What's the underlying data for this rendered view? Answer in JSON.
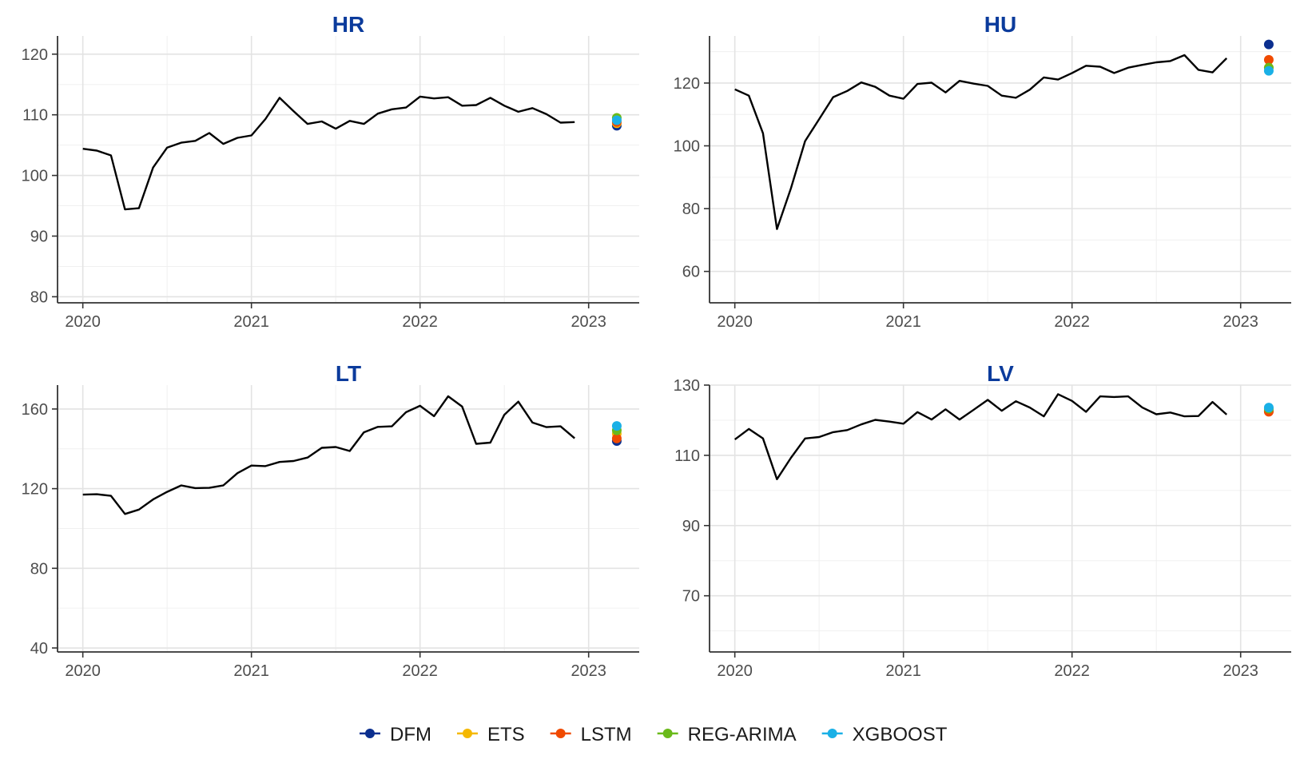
{
  "legend": {
    "items": [
      {
        "label": "DFM",
        "color": "#0b2f8f"
      },
      {
        "label": "ETS",
        "color": "#f5b800"
      },
      {
        "label": "LSTM",
        "color": "#f04a00"
      },
      {
        "label": "REG-ARIMA",
        "color": "#6aba1a"
      },
      {
        "label": "XGBOOST",
        "color": "#1ab0e6"
      }
    ]
  },
  "chart_data": [
    {
      "type": "line",
      "title": "HR",
      "xlabel": "",
      "ylabel": "",
      "x_ticks": [
        2020,
        2021,
        2022,
        2023
      ],
      "xlim": [
        2019.85,
        2023.3
      ],
      "y_ticks": [
        80,
        90,
        100,
        110,
        120
      ],
      "ylim": [
        79,
        123
      ],
      "grid": true,
      "x": [
        2020.0,
        2020.083,
        2020.167,
        2020.25,
        2020.333,
        2020.417,
        2020.5,
        2020.583,
        2020.667,
        2020.75,
        2020.833,
        2020.917,
        2021.0,
        2021.083,
        2021.167,
        2021.25,
        2021.333,
        2021.417,
        2021.5,
        2021.583,
        2021.667,
        2021.75,
        2021.833,
        2021.917,
        2022.0,
        2022.083,
        2022.167,
        2022.25,
        2022.333,
        2022.417,
        2022.5,
        2022.583,
        2022.667,
        2022.75,
        2022.833,
        2022.917
      ],
      "y": [
        104.4,
        104.1,
        103.3,
        94.4,
        94.6,
        101.3,
        104.6,
        105.4,
        105.7,
        107.0,
        105.2,
        106.2,
        106.6,
        109.3,
        112.8,
        110.6,
        108.5,
        108.9,
        107.7,
        109.0,
        108.5,
        110.2,
        110.9,
        111.2,
        113.0,
        112.7,
        112.9,
        111.5,
        111.6,
        112.8,
        111.5,
        110.5,
        111.1,
        110.1,
        108.7,
        108.8
      ],
      "forecast_x": 2023.167,
      "forecasts": [
        {
          "model": "DFM",
          "value": 108.2
        },
        {
          "model": "ETS",
          "value": 108.6
        },
        {
          "model": "LSTM",
          "value": 108.8
        },
        {
          "model": "REG-ARIMA",
          "value": 109.5
        },
        {
          "model": "XGBOOST",
          "value": 109.1
        }
      ]
    },
    {
      "type": "line",
      "title": "HU",
      "xlabel": "",
      "ylabel": "",
      "x_ticks": [
        2020,
        2021,
        2022,
        2023
      ],
      "xlim": [
        2019.85,
        2023.3
      ],
      "y_ticks": [
        60,
        80,
        100,
        120
      ],
      "ylim": [
        50,
        135
      ],
      "grid": true,
      "x": [
        2020.0,
        2020.083,
        2020.167,
        2020.25,
        2020.333,
        2020.417,
        2020.5,
        2020.583,
        2020.667,
        2020.75,
        2020.833,
        2020.917,
        2021.0,
        2021.083,
        2021.167,
        2021.25,
        2021.333,
        2021.417,
        2021.5,
        2021.583,
        2021.667,
        2021.75,
        2021.833,
        2021.917,
        2022.0,
        2022.083,
        2022.167,
        2022.25,
        2022.333,
        2022.417,
        2022.5,
        2022.583,
        2022.667,
        2022.75,
        2022.833,
        2022.917
      ],
      "y": [
        118.0,
        116.0,
        104.0,
        73.5,
        86.5,
        101.5,
        108.5,
        115.5,
        117.5,
        120.2,
        118.8,
        116.0,
        115.0,
        119.7,
        120.1,
        117.0,
        120.7,
        119.8,
        119.1,
        116.0,
        115.3,
        117.9,
        121.8,
        121.1,
        123.2,
        125.5,
        125.2,
        123.2,
        124.9,
        125.8,
        126.6,
        127.0,
        128.9,
        124.2,
        123.4,
        127.9
      ],
      "forecast_x": 2023.167,
      "forecasts": [
        {
          "model": "DFM",
          "value": 132.3
        },
        {
          "model": "ETS",
          "value": 124.9
        },
        {
          "model": "LSTM",
          "value": 127.4
        },
        {
          "model": "REG-ARIMA",
          "value": 124.9
        },
        {
          "model": "XGBOOST",
          "value": 123.9
        }
      ]
    },
    {
      "type": "line",
      "title": "LT",
      "xlabel": "",
      "ylabel": "",
      "x_ticks": [
        2020,
        2021,
        2022,
        2023
      ],
      "xlim": [
        2019.85,
        2023.3
      ],
      "y_ticks": [
        40,
        80,
        120,
        160
      ],
      "ylim": [
        38,
        172
      ],
      "grid": true,
      "x": [
        2020.0,
        2020.083,
        2020.167,
        2020.25,
        2020.333,
        2020.417,
        2020.5,
        2020.583,
        2020.667,
        2020.75,
        2020.833,
        2020.917,
        2021.0,
        2021.083,
        2021.167,
        2021.25,
        2021.333,
        2021.417,
        2021.5,
        2021.583,
        2021.667,
        2021.75,
        2021.833,
        2021.917,
        2022.0,
        2022.083,
        2022.167,
        2022.25,
        2022.333,
        2022.417,
        2022.5,
        2022.583,
        2022.667,
        2022.75,
        2022.833,
        2022.917
      ],
      "y": [
        117.0,
        117.2,
        116.4,
        107.3,
        109.5,
        114.6,
        118.4,
        121.6,
        120.3,
        120.4,
        121.6,
        127.8,
        131.6,
        131.3,
        133.4,
        133.9,
        135.6,
        140.5,
        140.9,
        138.9,
        148.3,
        151.0,
        151.3,
        158.4,
        161.6,
        156.4,
        166.4,
        161.2,
        142.5,
        143.1,
        157.1,
        163.7,
        153.2,
        150.9,
        151.3,
        145.3
      ],
      "forecast_x": 2023.167,
      "forecasts": [
        {
          "model": "DFM",
          "value": 143.9
        },
        {
          "model": "ETS",
          "value": 147.6
        },
        {
          "model": "LSTM",
          "value": 145.2
        },
        {
          "model": "REG-ARIMA",
          "value": 149.3
        },
        {
          "model": "XGBOOST",
          "value": 151.5
        }
      ]
    },
    {
      "type": "line",
      "title": "LV",
      "xlabel": "",
      "ylabel": "",
      "x_ticks": [
        2020,
        2021,
        2022,
        2023
      ],
      "xlim": [
        2019.85,
        2023.3
      ],
      "y_ticks": [
        70,
        90,
        110,
        130
      ],
      "ylim": [
        54,
        130
      ],
      "grid": true,
      "x": [
        2020.0,
        2020.083,
        2020.167,
        2020.25,
        2020.333,
        2020.417,
        2020.5,
        2020.583,
        2020.667,
        2020.75,
        2020.833,
        2020.917,
        2021.0,
        2021.083,
        2021.167,
        2021.25,
        2021.333,
        2021.417,
        2021.5,
        2021.583,
        2021.667,
        2021.75,
        2021.833,
        2021.917,
        2022.0,
        2022.083,
        2022.167,
        2022.25,
        2022.333,
        2022.417,
        2022.5,
        2022.583,
        2022.667,
        2022.75,
        2022.833,
        2022.917
      ],
      "y": [
        114.5,
        117.5,
        114.8,
        103.2,
        109.3,
        114.8,
        115.2,
        116.6,
        117.2,
        118.8,
        120.1,
        119.6,
        119.0,
        122.3,
        120.2,
        123.1,
        120.2,
        123.0,
        125.8,
        122.7,
        125.4,
        123.6,
        121.1,
        127.4,
        125.5,
        122.4,
        126.8,
        126.6,
        126.8,
        123.6,
        121.7,
        122.2,
        121.1,
        121.2,
        125.2,
        121.6
      ],
      "forecast_x": 2023.167,
      "forecasts": [
        {
          "model": "DFM",
          "value": 122.6
        },
        {
          "model": "ETS",
          "value": 123.0
        },
        {
          "model": "LSTM",
          "value": 122.4
        },
        {
          "model": "REG-ARIMA",
          "value": 123.3
        },
        {
          "model": "XGBOOST",
          "value": 123.6
        }
      ]
    }
  ]
}
